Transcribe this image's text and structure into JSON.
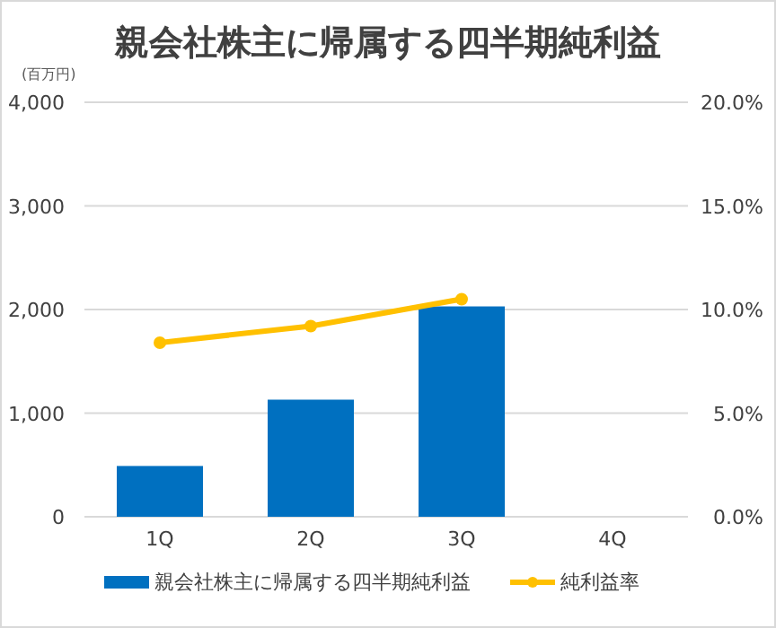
{
  "chart_data": {
    "type": "bar",
    "title": "親会社株主に帰属する四半期純利益",
    "ylabel": "(百万円)",
    "categories": [
      "1Q",
      "2Q",
      "3Q",
      "4Q"
    ],
    "series": [
      {
        "name": "親会社株主に帰属する四半期純利益",
        "color": "#0070c0",
        "values": [
          490,
          1130,
          2030,
          null
        ]
      },
      {
        "name": "純利益率",
        "type": "line",
        "axis": "y2",
        "color": "#ffc000",
        "marker": "circle",
        "values": [
          8.4,
          9.2,
          10.5,
          null
        ]
      }
    ],
    "ylim": [
      0,
      4000
    ],
    "yticks": [
      {
        "value": 0,
        "label": "0"
      },
      {
        "value": 1000,
        "label": "1,000"
      },
      {
        "value": 2000,
        "label": "2,000"
      },
      {
        "value": 3000,
        "label": "3,000"
      },
      {
        "value": 4000,
        "label": "4,000"
      }
    ],
    "y2lim": [
      0,
      20
    ],
    "y2ticks": [
      {
        "value": 0,
        "label": "0.0%"
      },
      {
        "value": 5,
        "label": "5.0%"
      },
      {
        "value": 10,
        "label": "10.0%"
      },
      {
        "value": 15,
        "label": "15.0%"
      },
      {
        "value": 20,
        "label": "20.0%"
      }
    ],
    "grid": "y",
    "legend": "bottom"
  }
}
